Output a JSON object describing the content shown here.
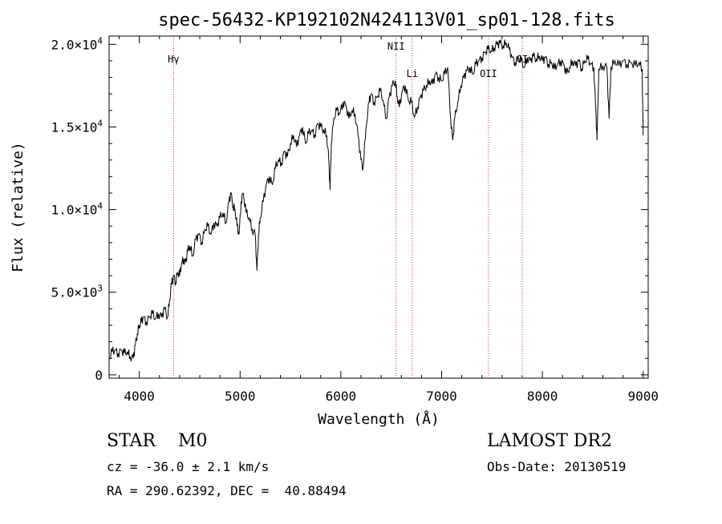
{
  "chart_data": {
    "type": "line",
    "title": "spec-56432-KP192102N424113V01_sp01-128.fits",
    "xlabel": "Wavelength (Å)",
    "ylabel": "Flux (relative)",
    "xlim": [
      3700,
      9050
    ],
    "ylim": [
      -200,
      20500
    ],
    "x_ticks": [
      4000,
      5000,
      6000,
      7000,
      8000,
      9000
    ],
    "x_tick_labels": [
      "4000",
      "5000",
      "6000",
      "7000",
      "8000",
      "9000"
    ],
    "y_ticks": [
      {
        "value": 0,
        "mantissa": "0",
        "exp": ""
      },
      {
        "value": 5000,
        "mantissa": "5.0×10",
        "exp": "3"
      },
      {
        "value": 10000,
        "mantissa": "1.0×10",
        "exp": "4"
      },
      {
        "value": 15000,
        "mantissa": "1.5×10",
        "exp": "4"
      },
      {
        "value": 20000,
        "mantissa": "2.0×10",
        "exp": "4"
      }
    ],
    "lines": [
      {
        "label": "Hγ",
        "wavelength": 4340
      },
      {
        "label": "NII",
        "wavelength": 6548
      },
      {
        "label": "Li",
        "wavelength": 6708
      },
      {
        "label": "OII",
        "wavelength": 7465
      },
      {
        "label": "OI",
        "wavelength": 7800
      }
    ],
    "series": [
      {
        "x": [
          3700,
          3730,
          3760,
          3790,
          3820,
          3850,
          3880,
          3910,
          3940,
          3960,
          3980,
          4000,
          4020,
          4040,
          4070,
          4100,
          4130,
          4160,
          4190,
          4220,
          4250,
          4280,
          4300,
          4320,
          4340,
          4360,
          4380,
          4400,
          4420,
          4440,
          4460,
          4480,
          4500,
          4530,
          4560,
          4590,
          4620,
          4650,
          4680,
          4710,
          4740,
          4770,
          4800,
          4830,
          4860,
          4890,
          4910,
          4930,
          4950,
          4970,
          4990,
          5010,
          5030,
          5060,
          5090,
          5120,
          5150,
          5167,
          5183,
          5200,
          5230,
          5260,
          5290,
          5320,
          5350,
          5380,
          5410,
          5440,
          5470,
          5500,
          5530,
          5560,
          5590,
          5620,
          5650,
          5680,
          5710,
          5740,
          5770,
          5800,
          5830,
          5860,
          5880,
          5893,
          5905,
          5930,
          5960,
          5990,
          6020,
          6050,
          6080,
          6110,
          6140,
          6170,
          6200,
          6220,
          6250,
          6280,
          6300,
          6330,
          6360,
          6390,
          6420,
          6450,
          6480,
          6510,
          6540,
          6560,
          6580,
          6610,
          6640,
          6670,
          6700,
          6730,
          6760,
          6790,
          6820,
          6850,
          6880,
          6910,
          6940,
          6970,
          7000,
          7030,
          7060,
          7090,
          7110,
          7130,
          7160,
          7190,
          7220,
          7250,
          7280,
          7310,
          7340,
          7370,
          7400,
          7430,
          7460,
          7490,
          7520,
          7550,
          7580,
          7610,
          7640,
          7670,
          7700,
          7730,
          7760,
          7790,
          7820,
          7850,
          7880,
          7910,
          7940,
          7970,
          8000,
          8030,
          8060,
          8090,
          8120,
          8150,
          8180,
          8210,
          8240,
          8270,
          8300,
          8330,
          8360,
          8390,
          8420,
          8450,
          8480,
          8510,
          8530,
          8542,
          8560,
          8600,
          8640,
          8662,
          8680,
          8720,
          8760,
          8800,
          8840,
          8880,
          8920,
          8960,
          8990,
          9000
        ],
        "y": [
          1000,
          1400,
          1500,
          1300,
          1500,
          1300,
          1400,
          1100,
          1000,
          1800,
          2500,
          3000,
          3200,
          3500,
          3200,
          3500,
          3700,
          3400,
          3700,
          3500,
          4000,
          3500,
          4500,
          5500,
          6000,
          5600,
          6200,
          6000,
          6800,
          7000,
          6800,
          7500,
          7800,
          7200,
          8200,
          8500,
          8000,
          8800,
          9000,
          8500,
          9200,
          9000,
          9500,
          9800,
          9200,
          10500,
          11000,
          10200,
          10000,
          9000,
          8500,
          10500,
          11000,
          9800,
          9500,
          8800,
          8500,
          6300,
          8500,
          9500,
          10500,
          11500,
          12000,
          11500,
          12500,
          13000,
          12800,
          13500,
          13200,
          14000,
          14500,
          13800,
          14500,
          15000,
          14000,
          14600,
          14800,
          14500,
          15200,
          15000,
          14800,
          14500,
          13000,
          11200,
          14000,
          15500,
          16000,
          15800,
          16500,
          16300,
          15500,
          16000,
          15800,
          14500,
          13000,
          12500,
          15000,
          16500,
          17000,
          16500,
          16800,
          17200,
          16600,
          15500,
          16800,
          17500,
          17800,
          16800,
          16200,
          17200,
          17500,
          16600,
          16500,
          15600,
          16200,
          16800,
          17200,
          17500,
          17800,
          17600,
          18200,
          18000,
          17800,
          18200,
          18600,
          15500,
          14200,
          15500,
          16500,
          17500,
          18000,
          18400,
          18600,
          18200,
          18800,
          19000,
          19200,
          19500,
          19700,
          19600,
          19800,
          20000,
          20100,
          19900,
          20100,
          19700,
          19200,
          18900,
          19200,
          19000,
          18600,
          19200,
          19000,
          19300,
          19100,
          19300,
          19000,
          19200,
          18800,
          18900,
          18500,
          18800,
          19000,
          18800,
          18200,
          18600,
          19000,
          18700,
          19000,
          18500,
          19000,
          19100,
          18800,
          18600,
          16000,
          14200,
          18500,
          18700,
          18600,
          15500,
          18600,
          19000,
          18700,
          19000,
          18800,
          18900,
          18700,
          18900,
          18500,
          14500
        ]
      }
    ]
  },
  "info": {
    "object": "STAR    M0",
    "survey": "LAMOST DR2",
    "cz": "cz = -36.0 ± 2.1 km/s",
    "obs_date": "Obs-Date: 20130519",
    "coords": "RA = 290.62392, DEC =  40.88494"
  }
}
